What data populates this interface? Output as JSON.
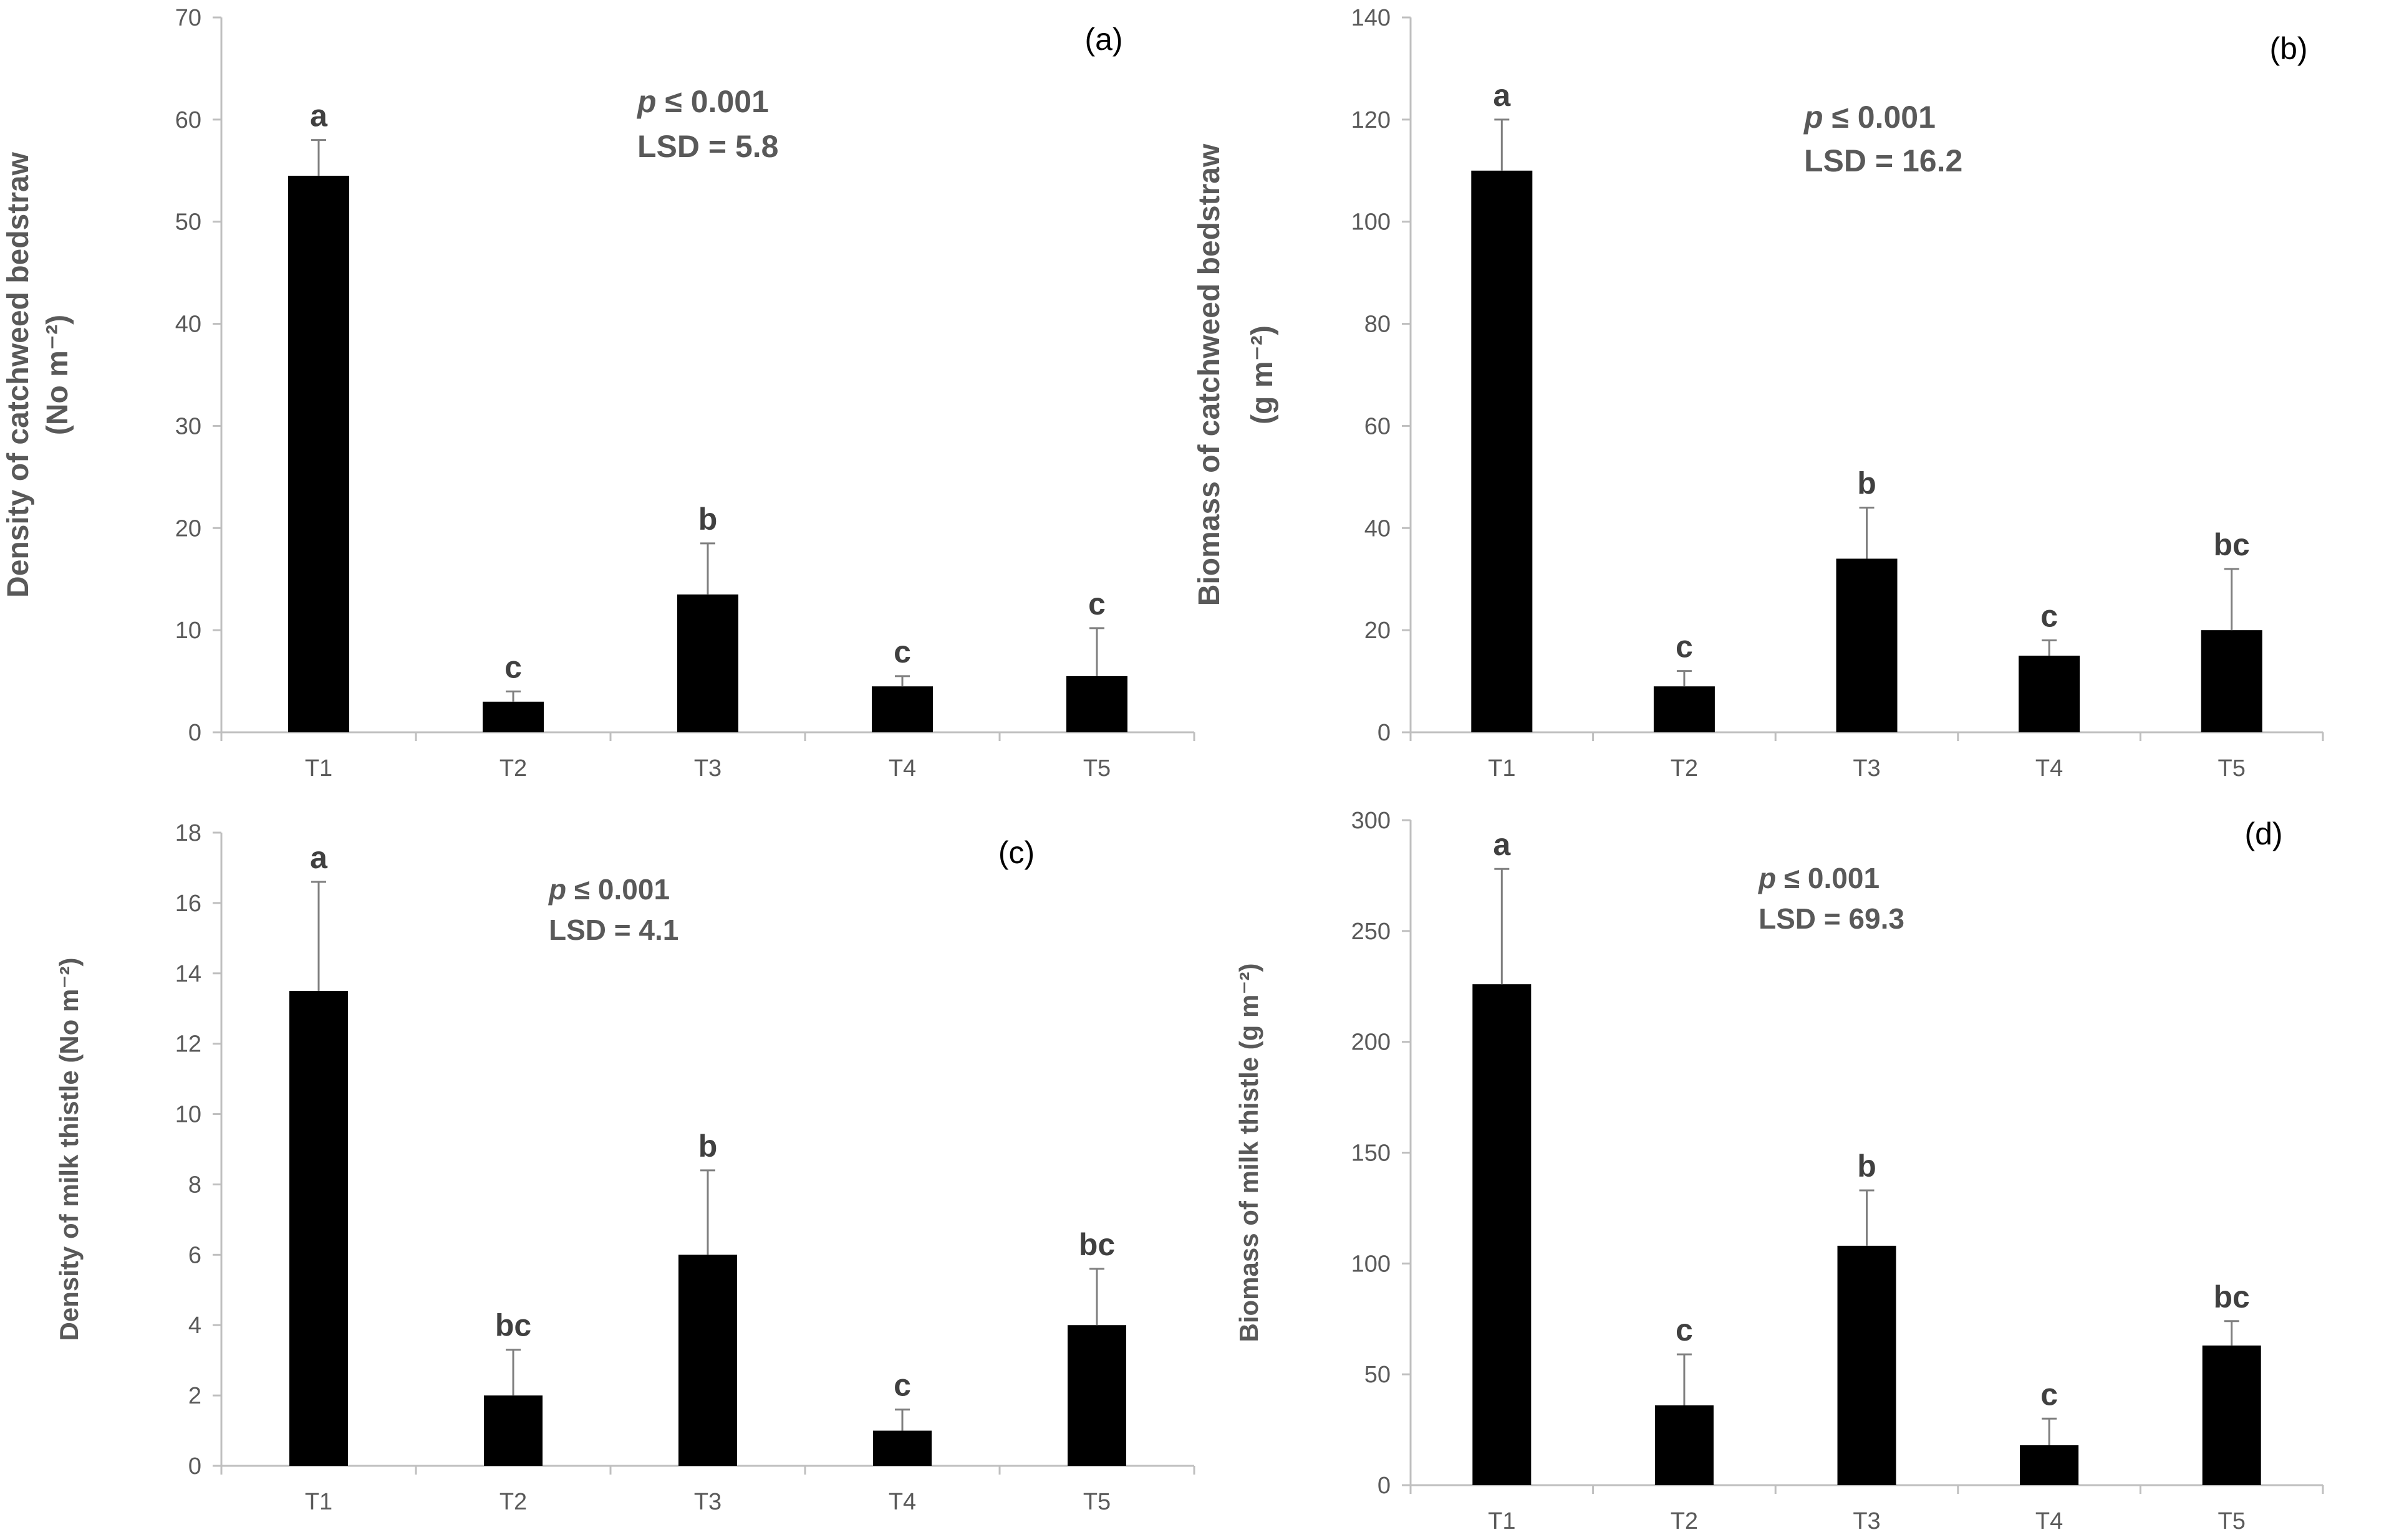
{
  "colors": {
    "bar": "#000000",
    "axis": "#bfbfbf",
    "text": "#595959",
    "label": "#404040",
    "error": "#7f7f7f"
  },
  "chart_data": [
    {
      "id": "a",
      "type": "bar",
      "panel_label": "(a)",
      "ylabel_line1": "Density of catchweed bedstraw",
      "ylabel_line2": "(No m⁻²)",
      "p_value": "p ≤ 0.001",
      "lsd": "LSD = 5.8",
      "categories": [
        "T1",
        "T2",
        "T3",
        "T4",
        "T5"
      ],
      "values": [
        54.5,
        3.0,
        13.5,
        4.5,
        5.5
      ],
      "errors": [
        3.5,
        1.0,
        5.0,
        1.0,
        4.7
      ],
      "letters": [
        "a",
        "c",
        "b",
        "c",
        "c"
      ],
      "ylim": [
        0,
        70
      ],
      "yticks": [
        0,
        10,
        20,
        30,
        40,
        50,
        60,
        70
      ]
    },
    {
      "id": "b",
      "type": "bar",
      "panel_label": "(b)",
      "ylabel_line1": "Biomass of catchweed bedstraw",
      "ylabel_line2": "(g m⁻²)",
      "p_value": "p ≤ 0.001",
      "lsd": "LSD = 16.2",
      "categories": [
        "T1",
        "T2",
        "T3",
        "T4",
        "T5"
      ],
      "values": [
        110,
        9,
        34,
        15,
        20
      ],
      "errors": [
        10,
        3,
        10,
        3,
        12
      ],
      "letters": [
        "a",
        "c",
        "b",
        "c",
        "bc"
      ],
      "ylim": [
        0,
        140
      ],
      "yticks": [
        0,
        20,
        40,
        60,
        80,
        100,
        120,
        140
      ]
    },
    {
      "id": "c",
      "type": "bar",
      "panel_label": "(c)",
      "ylabel_line1": "Density of milk thistle (No m⁻²)",
      "ylabel_line2": "",
      "p_value": "p ≤ 0.001",
      "lsd": "LSD = 4.1",
      "categories": [
        "T1",
        "T2",
        "T3",
        "T4",
        "T5"
      ],
      "values": [
        13.5,
        2.0,
        6.0,
        1.0,
        4.0
      ],
      "errors": [
        3.1,
        1.3,
        2.4,
        0.6,
        1.6
      ],
      "letters": [
        "a",
        "bc",
        "b",
        "c",
        "bc"
      ],
      "ylim": [
        0,
        18
      ],
      "yticks": [
        0,
        2,
        4,
        6,
        8,
        10,
        12,
        14,
        16,
        18
      ]
    },
    {
      "id": "d",
      "type": "bar",
      "panel_label": "(d)",
      "ylabel_line1": "Biomass of milk thistle (g m⁻²)",
      "ylabel_line2": "",
      "p_value": "p ≤ 0.001",
      "lsd": "LSD = 69.3",
      "categories": [
        "T1",
        "T2",
        "T3",
        "T4",
        "T5"
      ],
      "values": [
        226,
        36,
        108,
        18,
        63
      ],
      "errors": [
        52,
        23,
        25,
        12,
        11
      ],
      "letters": [
        "a",
        "c",
        "b",
        "c",
        "bc"
      ],
      "ylim": [
        0,
        300
      ],
      "yticks": [
        0,
        50,
        100,
        150,
        200,
        250,
        300
      ]
    }
  ]
}
